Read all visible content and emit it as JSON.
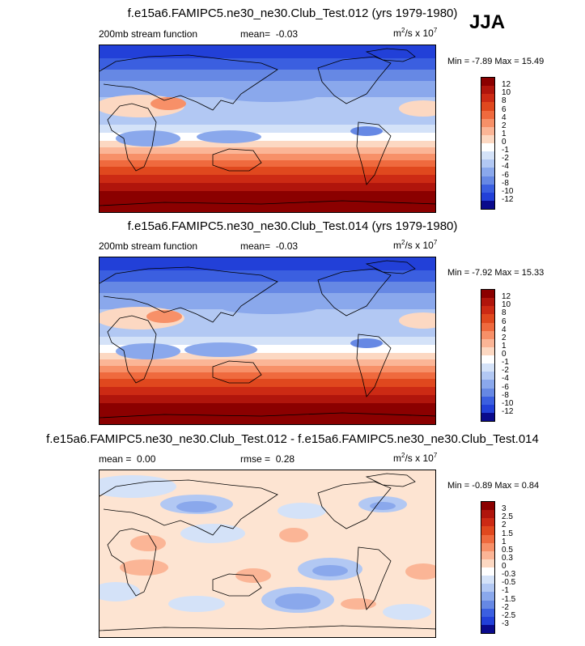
{
  "season": "JJA",
  "panels": [
    {
      "title": "f.e15a6.FAMIPC5.ne30_ne30.Club_Test.012 (yrs 1979-1980)",
      "left_label": "200mb stream function",
      "mean_label": "mean=",
      "mean_value": "-0.03",
      "units_base": "m",
      "units_mid": "/s x 10",
      "units_exp2": "2",
      "units_exp7": "7",
      "min_label": "Min =",
      "min_value": "-7.89",
      "max_label": "Max =",
      "max_value": "15.49",
      "colorbar_levels": [
        "12",
        "10",
        "8",
        "6",
        "4",
        "2",
        "1",
        "0",
        "-1",
        "-2",
        "-4",
        "-6",
        "-8",
        "-10",
        "-12"
      ]
    },
    {
      "title": "f.e15a6.FAMIPC5.ne30_ne30.Club_Test.014 (yrs 1979-1980)",
      "left_label": "200mb stream function",
      "mean_label": "mean=",
      "mean_value": "-0.03",
      "units_base": "m",
      "units_mid": "/s x 10",
      "units_exp2": "2",
      "units_exp7": "7",
      "min_label": "Min =",
      "min_value": "-7.92",
      "max_label": "Max =",
      "max_value": "15.33",
      "colorbar_levels": [
        "12",
        "10",
        "8",
        "6",
        "4",
        "2",
        "1",
        "0",
        "-1",
        "-2",
        "-4",
        "-6",
        "-8",
        "-10",
        "-12"
      ]
    },
    {
      "title": "f.e15a6.FAMIPC5.ne30_ne30.Club_Test.012 - f.e15a6.FAMIPC5.ne30_ne30.Club_Test.014",
      "left_label": "mean =",
      "mean_label": "",
      "mean_value": "0.00",
      "rmse_label": "rmse =",
      "rmse_value": "0.28",
      "units_base": "m",
      "units_mid": "/s x 10",
      "units_exp2": "2",
      "units_exp7": "7",
      "min_label": "Min =",
      "min_value": "-0.89",
      "max_label": "Max =",
      "max_value": "0.84",
      "colorbar_levels": [
        "3",
        "2.5",
        "2",
        "1.5",
        "1",
        "0.5",
        "0.3",
        "0",
        "-0.3",
        "-0.5",
        "-1",
        "-1.5",
        "-2",
        "-2.5",
        "-3"
      ]
    }
  ],
  "colors": {
    "colorbar": [
      "#8b0000",
      "#b0150c",
      "#cc2a14",
      "#e0481e",
      "#ef6a3e",
      "#f79068",
      "#fbb596",
      "#fcd8c2",
      "#ffffff",
      "#d4e2f8",
      "#b2c8f3",
      "#8aa8ec",
      "#6688e4",
      "#3b5fe0",
      "#2240d8",
      "#0a0a8c"
    ],
    "background_diff": "#fde4d2"
  },
  "chart_data": [
    {
      "type": "heatmap",
      "title": "f.e15a6.FAMIPC5.ne30_ne30.Club_Test.012 (yrs 1979-1980)",
      "variable": "200mb stream function",
      "units": "m2/s x 10^7",
      "mean": -0.03,
      "min": -7.89,
      "max": 15.49,
      "contour_levels": [
        -12,
        -10,
        -8,
        -6,
        -4,
        -2,
        -1,
        0,
        1,
        2,
        4,
        6,
        8,
        10,
        12
      ],
      "zonal_profile_north_to_south": [
        -8,
        -7,
        -5,
        -3,
        -2,
        -1,
        0,
        1,
        2,
        4,
        6,
        8,
        10,
        12,
        14
      ]
    },
    {
      "type": "heatmap",
      "title": "f.e15a6.FAMIPC5.ne30_ne30.Club_Test.014 (yrs 1979-1980)",
      "variable": "200mb stream function",
      "units": "m2/s x 10^7",
      "mean": -0.03,
      "min": -7.92,
      "max": 15.33,
      "contour_levels": [
        -12,
        -10,
        -8,
        -6,
        -4,
        -2,
        -1,
        0,
        1,
        2,
        4,
        6,
        8,
        10,
        12
      ],
      "zonal_profile_north_to_south": [
        -8,
        -7,
        -5,
        -3,
        -2,
        -1,
        0,
        1,
        2,
        4,
        6,
        8,
        10,
        12,
        14
      ]
    },
    {
      "type": "heatmap",
      "title": "f.e15a6.FAMIPC5.ne30_ne30.Club_Test.012 - f.e15a6.FAMIPC5.ne30_ne30.Club_Test.014",
      "variable": "difference",
      "units": "m2/s x 10^7",
      "mean": 0.0,
      "rmse": 0.28,
      "min": -0.89,
      "max": 0.84,
      "contour_levels": [
        -3,
        -2.5,
        -2,
        -1.5,
        -1,
        -0.5,
        -0.3,
        0,
        0.3,
        0.5,
        1,
        1.5,
        2,
        2.5,
        3
      ]
    }
  ]
}
